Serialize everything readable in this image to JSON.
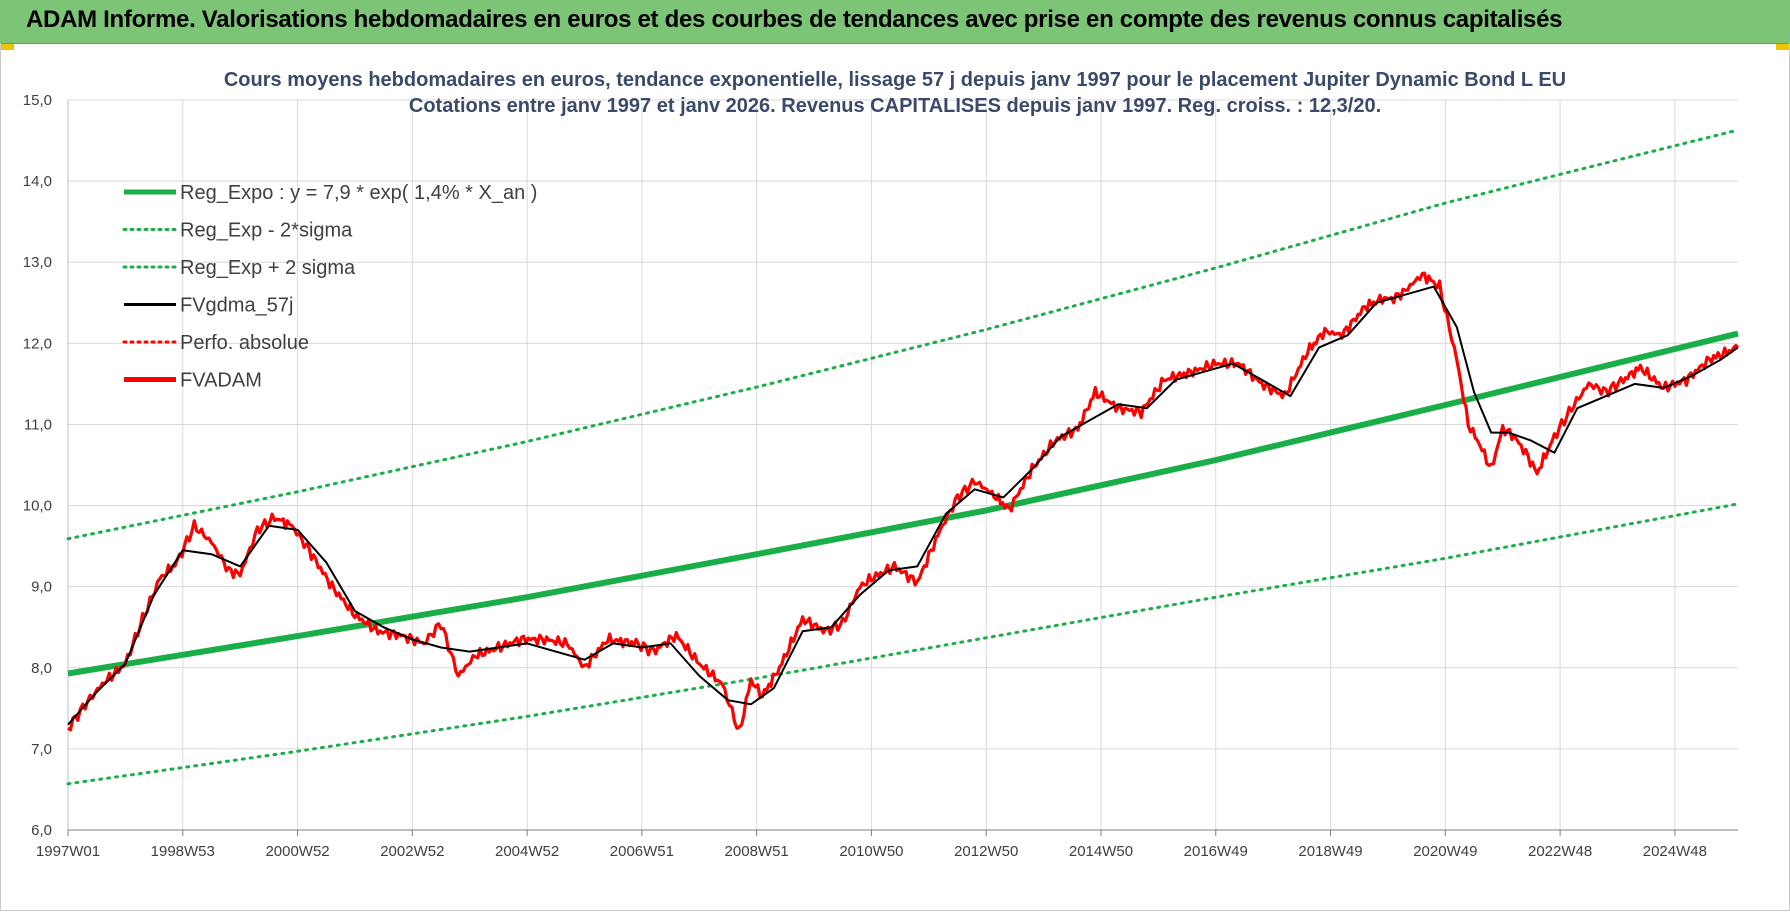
{
  "header": {
    "title": "ADAM Informe. Valorisations hebdomadaires en euros et des courbes de tendances avec prise en compte des revenus connus capitalisés"
  },
  "colors": {
    "header_bg": "#7dc576",
    "trend": "#1aae48",
    "band": "#1aae48",
    "smooth": "#000000",
    "perf": "#ff0000",
    "price": "#ff0000",
    "grid": "#d9d9d9"
  },
  "chart_data": {
    "type": "line",
    "title_line1": "Cours moyens hebdomadaires en euros, tendance exponentielle, lissage 57 j depuis janv 1997 pour le placement Jupiter Dynamic Bond L EU",
    "title_line2": "Cotations entre janv 1997 et janv 2026. Revenus CAPITALISES depuis janv 1997. Reg. croiss. : 12,3/20.",
    "ylim": [
      6.0,
      15.0
    ],
    "y_ticks": [
      "15,0",
      "14,0",
      "13,0",
      "12,0",
      "11,0",
      "10,0",
      "9,0",
      "8,0",
      "7,0",
      "6,0"
    ],
    "x_ticks": [
      "1997W01",
      "1998W53",
      "2000W52",
      "2002W52",
      "2004W52",
      "2006W51",
      "2008W51",
      "2010W50",
      "2012W50",
      "2014W50",
      "2016W49",
      "2018W49",
      "2020W49",
      "2022W48",
      "2024W48"
    ],
    "x_tick_years": [
      1997.0,
      1999.0,
      2001.0,
      2003.0,
      2005.0,
      2007.0,
      2009.0,
      2011.0,
      2013.0,
      2015.0,
      2017.0,
      2019.0,
      2021.0,
      2023.0,
      2025.0
    ],
    "x_range": [
      1997.0,
      2026.1
    ],
    "grid": true,
    "legend_position": "top-left",
    "legend": [
      {
        "label": "Reg_Expo : y = 7,9 * exp( 1,4% *  X_an )",
        "style": "solid-thick",
        "color": "#1aae48"
      },
      {
        "label": "Reg_Exp - 2*sigma",
        "style": "dotted",
        "color": "#1aae48"
      },
      {
        "label": "Reg_Exp + 2 sigma",
        "style": "dotted",
        "color": "#1aae48"
      },
      {
        "label": "FVgdma_57j",
        "style": "solid",
        "color": "#000000"
      },
      {
        "label": "Perfo. absolue",
        "style": "dotted",
        "color": "#ff0000"
      },
      {
        "label": "FVADAM",
        "style": "solid-thick",
        "color": "#ff0000"
      }
    ],
    "series": [
      {
        "name": "Reg_Expo : y = 7,9 * exp( 1,4% *  X_an )",
        "x": [
          1997.0,
          2001.0,
          2005.0,
          2009.0,
          2013.0,
          2017.0,
          2021.0,
          2026.1
        ],
        "values": [
          7.93,
          8.39,
          8.87,
          9.4,
          9.94,
          10.56,
          11.24,
          12.12
        ]
      },
      {
        "name": "Reg_Exp - 2*sigma",
        "x": [
          1997.0,
          2001.0,
          2005.0,
          2009.0,
          2013.0,
          2017.0,
          2021.0,
          2026.1
        ],
        "values": [
          6.57,
          6.97,
          7.4,
          7.87,
          8.37,
          8.87,
          9.35,
          10.02
        ]
      },
      {
        "name": "Reg_Exp + 2 sigma",
        "x": [
          1997.0,
          2001.0,
          2005.0,
          2009.0,
          2013.0,
          2017.0,
          2021.0,
          2026.1
        ],
        "values": [
          9.59,
          10.17,
          10.79,
          11.46,
          12.17,
          12.93,
          13.73,
          14.63
        ]
      },
      {
        "name": "FVADAM",
        "x": [
          1997.0,
          1997.3,
          1997.6,
          1998.0,
          1998.3,
          1998.6,
          1998.9,
          1999.2,
          1999.5,
          1999.8,
          2000.0,
          2000.3,
          2000.6,
          2000.9,
          2001.2,
          2001.6,
          2002.0,
          2002.4,
          2002.8,
          2003.2,
          2003.5,
          2003.8,
          2004.1,
          2004.5,
          2004.9,
          2005.3,
          2005.7,
          2006.0,
          2006.4,
          2006.9,
          2007.2,
          2007.6,
          2008.0,
          2008.4,
          2008.7,
          2008.9,
          2009.1,
          2009.4,
          2009.8,
          2010.2,
          2010.5,
          2010.8,
          2011.0,
          2011.4,
          2011.8,
          2012.2,
          2012.5,
          2012.8,
          2013.1,
          2013.4,
          2013.8,
          2014.2,
          2014.6,
          2014.9,
          2015.3,
          2015.7,
          2016.1,
          2016.6,
          2017.0,
          2017.4,
          2017.8,
          2018.2,
          2018.6,
          2018.9,
          2019.2,
          2019.6,
          2019.9,
          2020.1,
          2020.3,
          2020.6,
          2020.9,
          2021.2,
          2021.4,
          2021.6,
          2021.8,
          2022.0,
          2022.2,
          2022.4,
          2022.6,
          2022.9,
          2023.2,
          2023.5,
          2023.8,
          2024.1,
          2024.4,
          2024.8,
          2025.2,
          2025.6,
          2026.1
        ],
        "values": [
          7.25,
          7.55,
          7.8,
          8.05,
          8.6,
          9.1,
          9.3,
          9.75,
          9.55,
          9.2,
          9.15,
          9.7,
          9.85,
          9.75,
          9.45,
          9.0,
          8.65,
          8.45,
          8.4,
          8.3,
          8.55,
          7.9,
          8.15,
          8.25,
          8.35,
          8.35,
          8.3,
          8.0,
          8.35,
          8.3,
          8.2,
          8.4,
          8.05,
          7.8,
          7.2,
          7.85,
          7.65,
          8.0,
          8.6,
          8.45,
          8.55,
          9.0,
          9.1,
          9.25,
          9.05,
          9.7,
          10.1,
          10.3,
          10.15,
          9.95,
          10.45,
          10.8,
          10.95,
          11.4,
          11.2,
          11.15,
          11.55,
          11.65,
          11.75,
          11.75,
          11.5,
          11.35,
          11.9,
          12.15,
          12.1,
          12.45,
          12.55,
          12.55,
          12.65,
          12.85,
          12.7,
          11.8,
          11.0,
          10.75,
          10.45,
          10.95,
          10.85,
          10.65,
          10.4,
          10.85,
          11.2,
          11.5,
          11.4,
          11.55,
          11.7,
          11.45,
          11.55,
          11.8,
          11.95
        ]
      },
      {
        "name": "FVgdma_57j",
        "x": [
          1997.0,
          1997.5,
          1998.0,
          1998.5,
          1999.0,
          1999.5,
          2000.0,
          2000.5,
          2001.0,
          2001.5,
          2002.0,
          2002.5,
          2003.0,
          2003.5,
          2004.0,
          2004.5,
          2005.0,
          2005.5,
          2006.0,
          2006.5,
          2007.0,
          2007.5,
          2008.0,
          2008.5,
          2008.9,
          2009.3,
          2009.8,
          2010.3,
          2010.8,
          2011.3,
          2011.8,
          2012.3,
          2012.8,
          2013.3,
          2013.8,
          2014.3,
          2014.8,
          2015.3,
          2015.8,
          2016.3,
          2016.8,
          2017.3,
          2017.8,
          2018.3,
          2018.8,
          2019.3,
          2019.8,
          2020.3,
          2020.8,
          2021.2,
          2021.5,
          2021.8,
          2022.1,
          2022.5,
          2022.9,
          2023.3,
          2023.8,
          2024.3,
          2024.8,
          2025.3,
          2025.8,
          2026.1
        ],
        "values": [
          7.3,
          7.7,
          8.05,
          8.9,
          9.45,
          9.4,
          9.25,
          9.75,
          9.7,
          9.3,
          8.7,
          8.5,
          8.35,
          8.25,
          8.2,
          8.25,
          8.3,
          8.2,
          8.1,
          8.3,
          8.25,
          8.3,
          7.9,
          7.6,
          7.55,
          7.75,
          8.45,
          8.5,
          8.9,
          9.2,
          9.25,
          9.9,
          10.2,
          10.1,
          10.45,
          10.85,
          11.05,
          11.25,
          11.2,
          11.55,
          11.65,
          11.75,
          11.55,
          11.35,
          11.95,
          12.1,
          12.5,
          12.6,
          12.7,
          12.2,
          11.4,
          10.9,
          10.9,
          10.8,
          10.65,
          11.2,
          11.35,
          11.5,
          11.45,
          11.6,
          11.8,
          11.95
        ]
      }
    ]
  }
}
